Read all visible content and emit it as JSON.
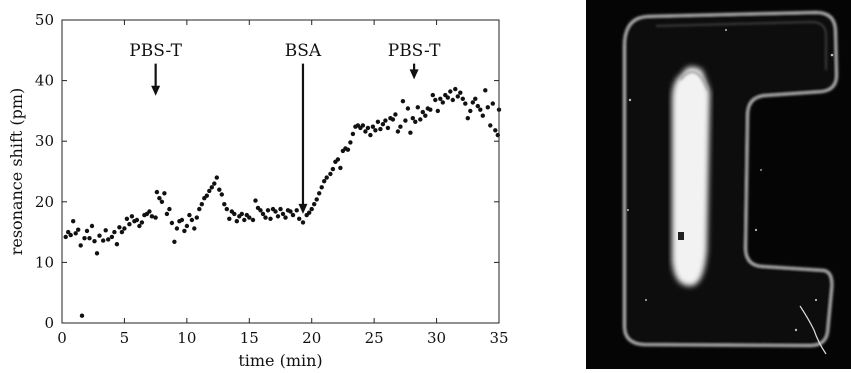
{
  "chart_data": {
    "type": "scatter",
    "xlabel": "time (min)",
    "ylabel": "resonance shift (pm)",
    "xlim": [
      0,
      35
    ],
    "ylim": [
      0,
      50
    ],
    "xticks": [
      0,
      5,
      10,
      15,
      20,
      25,
      30,
      35
    ],
    "yticks": [
      0,
      10,
      20,
      30,
      40,
      50
    ],
    "grid": false,
    "annotations": [
      {
        "text": "PBS-T",
        "x": 7.5,
        "arrow_from_y": 42.8,
        "arrow_to_y": 37.5
      },
      {
        "text": "BSA",
        "x": 19.3,
        "arrow_from_y": 42.8,
        "arrow_to_y": 18
      },
      {
        "text": "PBS-T",
        "x": 28.2,
        "arrow_from_y": 42.8,
        "arrow_to_y": 40.2
      }
    ],
    "series": [
      {
        "points": [
          [
            0.3,
            14.2
          ],
          [
            0.5,
            15.0
          ],
          [
            0.7,
            14.5
          ],
          [
            0.9,
            16.8
          ],
          [
            1.1,
            14.8
          ],
          [
            1.3,
            15.4
          ],
          [
            1.5,
            12.8
          ],
          [
            1.6,
            1.2
          ],
          [
            1.8,
            14.0
          ],
          [
            2.0,
            15.2
          ],
          [
            2.2,
            14.0
          ],
          [
            2.4,
            16.0
          ],
          [
            2.6,
            13.5
          ],
          [
            2.8,
            11.5
          ],
          [
            3.0,
            14.4
          ],
          [
            3.3,
            13.6
          ],
          [
            3.5,
            15.3
          ],
          [
            3.7,
            13.8
          ],
          [
            4.0,
            14.2
          ],
          [
            4.2,
            15.0
          ],
          [
            4.4,
            13.0
          ],
          [
            4.6,
            15.8
          ],
          [
            4.8,
            15.0
          ],
          [
            5.0,
            15.6
          ],
          [
            5.2,
            17.2
          ],
          [
            5.4,
            16.3
          ],
          [
            5.6,
            17.6
          ],
          [
            5.8,
            16.8
          ],
          [
            6.0,
            17.0
          ],
          [
            6.2,
            16.0
          ],
          [
            6.4,
            16.6
          ],
          [
            6.6,
            17.8
          ],
          [
            6.8,
            18.0
          ],
          [
            7.0,
            18.4
          ],
          [
            7.2,
            17.6
          ],
          [
            7.5,
            17.4
          ],
          [
            7.6,
            21.6
          ],
          [
            7.8,
            20.6
          ],
          [
            8.0,
            20.0
          ],
          [
            8.2,
            21.4
          ],
          [
            8.4,
            18.0
          ],
          [
            8.6,
            18.8
          ],
          [
            8.8,
            16.5
          ],
          [
            9.0,
            13.4
          ],
          [
            9.2,
            15.6
          ],
          [
            9.4,
            16.8
          ],
          [
            9.6,
            17.0
          ],
          [
            9.8,
            15.2
          ],
          [
            10.0,
            16.0
          ],
          [
            10.2,
            17.8
          ],
          [
            10.4,
            17.0
          ],
          [
            10.6,
            15.6
          ],
          [
            10.8,
            17.4
          ],
          [
            11.0,
            18.8
          ],
          [
            11.2,
            19.6
          ],
          [
            11.4,
            20.6
          ],
          [
            11.6,
            21.0
          ],
          [
            11.8,
            21.8
          ],
          [
            12.0,
            22.4
          ],
          [
            12.2,
            23.0
          ],
          [
            12.4,
            24.0
          ],
          [
            12.6,
            22.0
          ],
          [
            12.8,
            21.2
          ],
          [
            13.0,
            19.6
          ],
          [
            13.2,
            18.8
          ],
          [
            13.4,
            17.2
          ],
          [
            13.6,
            18.4
          ],
          [
            13.8,
            18.0
          ],
          [
            14.0,
            16.8
          ],
          [
            14.2,
            17.6
          ],
          [
            14.4,
            18.0
          ],
          [
            14.6,
            17.0
          ],
          [
            14.8,
            17.8
          ],
          [
            15.0,
            17.4
          ],
          [
            15.3,
            17.0
          ],
          [
            15.5,
            20.2
          ],
          [
            15.7,
            19.0
          ],
          [
            15.9,
            18.6
          ],
          [
            16.1,
            18.0
          ],
          [
            16.3,
            17.4
          ],
          [
            16.5,
            18.6
          ],
          [
            16.7,
            17.2
          ],
          [
            16.9,
            18.8
          ],
          [
            17.1,
            18.4
          ],
          [
            17.3,
            17.6
          ],
          [
            17.5,
            18.8
          ],
          [
            17.7,
            18.0
          ],
          [
            17.9,
            17.4
          ],
          [
            18.1,
            18.6
          ],
          [
            18.3,
            18.4
          ],
          [
            18.5,
            17.8
          ],
          [
            18.8,
            18.6
          ],
          [
            19.0,
            17.2
          ],
          [
            19.3,
            16.6
          ],
          [
            19.6,
            17.8
          ],
          [
            19.8,
            18.2
          ],
          [
            20.0,
            18.8
          ],
          [
            20.2,
            19.6
          ],
          [
            20.4,
            20.4
          ],
          [
            20.6,
            21.4
          ],
          [
            20.8,
            22.4
          ],
          [
            21.0,
            23.4
          ],
          [
            21.2,
            24.0
          ],
          [
            21.5,
            24.6
          ],
          [
            21.7,
            25.4
          ],
          [
            21.9,
            26.6
          ],
          [
            22.1,
            27.0
          ],
          [
            22.3,
            25.6
          ],
          [
            22.5,
            28.4
          ],
          [
            22.7,
            28.8
          ],
          [
            22.9,
            28.6
          ],
          [
            23.1,
            29.8
          ],
          [
            23.3,
            31.2
          ],
          [
            23.5,
            32.4
          ],
          [
            23.7,
            32.6
          ],
          [
            23.9,
            32.2
          ],
          [
            24.1,
            32.6
          ],
          [
            24.3,
            31.6
          ],
          [
            24.5,
            32.2
          ],
          [
            24.7,
            31.0
          ],
          [
            24.9,
            32.4
          ],
          [
            25.1,
            31.8
          ],
          [
            25.3,
            33.2
          ],
          [
            25.5,
            32.0
          ],
          [
            25.7,
            32.8
          ],
          [
            25.9,
            33.4
          ],
          [
            26.1,
            32.2
          ],
          [
            26.3,
            33.8
          ],
          [
            26.5,
            33.6
          ],
          [
            26.7,
            34.4
          ],
          [
            26.9,
            31.6
          ],
          [
            27.1,
            32.4
          ],
          [
            27.3,
            36.6
          ],
          [
            27.5,
            33.4
          ],
          [
            27.7,
            35.4
          ],
          [
            27.9,
            31.4
          ],
          [
            28.1,
            33.8
          ],
          [
            28.3,
            33.2
          ],
          [
            28.5,
            35.6
          ],
          [
            28.7,
            33.6
          ],
          [
            28.9,
            34.8
          ],
          [
            29.1,
            34.2
          ],
          [
            29.3,
            35.4
          ],
          [
            29.5,
            35.2
          ],
          [
            29.7,
            37.6
          ],
          [
            29.9,
            36.8
          ],
          [
            30.1,
            35.0
          ],
          [
            30.3,
            37.0
          ],
          [
            30.5,
            36.4
          ],
          [
            30.7,
            37.6
          ],
          [
            30.9,
            37.2
          ],
          [
            31.1,
            38.2
          ],
          [
            31.3,
            36.8
          ],
          [
            31.5,
            38.6
          ],
          [
            31.7,
            37.4
          ],
          [
            31.9,
            38.0
          ],
          [
            32.1,
            37.0
          ],
          [
            32.3,
            36.2
          ],
          [
            32.5,
            33.8
          ],
          [
            32.7,
            35.0
          ],
          [
            32.9,
            36.4
          ],
          [
            33.1,
            37.0
          ],
          [
            33.3,
            35.8
          ],
          [
            33.5,
            35.2
          ],
          [
            33.7,
            34.2
          ],
          [
            33.9,
            38.4
          ],
          [
            34.1,
            35.6
          ],
          [
            34.3,
            32.6
          ],
          [
            34.5,
            36.2
          ],
          [
            34.7,
            31.8
          ],
          [
            34.9,
            31.0
          ],
          [
            35.0,
            35.2
          ]
        ]
      }
    ]
  }
}
